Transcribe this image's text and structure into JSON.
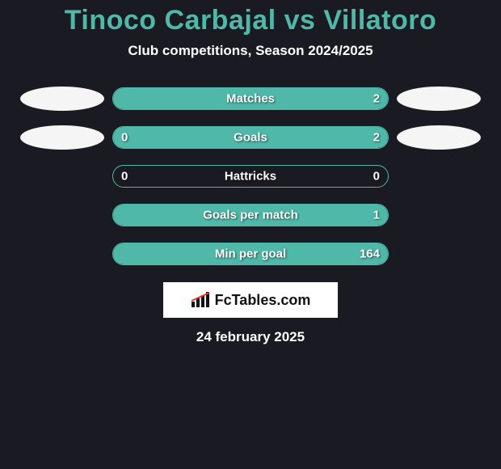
{
  "background_color": "#1a1a22",
  "accent_color": "#4fb8a8",
  "text_color": "#ffffff",
  "title": "Tinoco Carbajal vs Villatoro",
  "title_color": "#4fb8a8",
  "title_fontsize": 34,
  "subtitle": "Club competitions, Season 2024/2025",
  "subtitle_fontsize": 17,
  "bar_track_width": 342,
  "bar_track_height": 28,
  "bar_border_color": "#4fb8a8",
  "bar_fill_color": "#4fb8a8",
  "oval_color": "#f5f5f5",
  "rows": [
    {
      "label": "Matches",
      "left": "",
      "right": "2",
      "left_pct": 0,
      "right_pct": 100,
      "show_ovals": true,
      "show_left_val": false,
      "show_right_val": true
    },
    {
      "label": "Goals",
      "left": "0",
      "right": "2",
      "left_pct": 20,
      "right_pct": 80,
      "show_ovals": true,
      "show_left_val": true,
      "show_right_val": true
    },
    {
      "label": "Hattricks",
      "left": "0",
      "right": "0",
      "left_pct": 0,
      "right_pct": 0,
      "show_ovals": false,
      "show_left_val": true,
      "show_right_val": true
    },
    {
      "label": "Goals per match",
      "left": "",
      "right": "1",
      "left_pct": 0,
      "right_pct": 100,
      "show_ovals": false,
      "show_left_val": false,
      "show_right_val": true
    },
    {
      "label": "Min per goal",
      "left": "",
      "right": "164",
      "left_pct": 0,
      "right_pct": 100,
      "show_ovals": false,
      "show_left_val": false,
      "show_right_val": true
    }
  ],
  "logo_text": "FcTables.com",
  "logo_bg": "#ffffff",
  "logo_text_color": "#111111",
  "date": "24 february 2025"
}
